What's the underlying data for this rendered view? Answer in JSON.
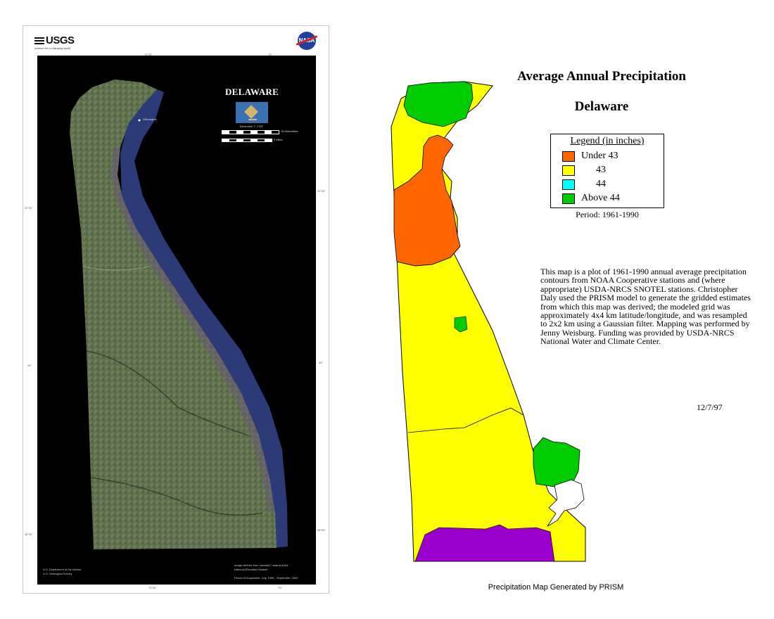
{
  "poster": {
    "agency": "USGS",
    "agency_tagline": "science for a changing world",
    "nasa_label": "NASA",
    "title": "DELAWARE",
    "coords": {
      "top_left": "75°30'",
      "top_right": "75°",
      "left_1": "39°30'",
      "right_1": "39°30'",
      "left_2": "39°",
      "right_2": "39°",
      "left_3": "38°30'",
      "right_3": "38°30'",
      "bottom_left": "75°30'",
      "bottom_right": "75°"
    },
    "city_label": "Wilmington",
    "scale_km": "15 Kilometers",
    "scale_mi": "5 Miles",
    "flag_caption": "December 7, 1787",
    "credit_left": [
      "U.S. Department of the Interior",
      "U.S. Geological Survey"
    ],
    "credit_right": [
      "Image derived from Landsat 7 data and the",
      "National Elevation Dataset",
      "",
      "Period of Acquisition: July, 1999 - September, 2002"
    ]
  },
  "precip_map": {
    "title": "Average Annual Precipitation",
    "subtitle": "Delaware",
    "legend": {
      "title": "Legend (in inches)",
      "items": [
        {
          "label": "Under 43",
          "color": "#ff6600"
        },
        {
          "label": "43",
          "color": "#ffff00"
        },
        {
          "label": "44",
          "color": "#00ffff"
        },
        {
          "label": "Above 44",
          "color": "#00cc00"
        }
      ]
    },
    "period": "Period: 1961-1990",
    "description": "This map is a plot of 1961-1990 annual average precipitation contours from NOAA Cooperative stations and (where appropriate) USDA-NRCS SNOTEL stations. Christopher Daly used the PRISM model to generate the gridded estimates from which this map was derived; the modeled grid was approximately 4x4 km latitude/longitude, and was resampled to 2x2 km using a Gaussian filter. Mapping was performed by Jenny Weisburg. Funding was provided by USDA-NRCS National Water and Climate Center.",
    "date": "12/7/97",
    "footer": "Precipitation Map Generated by PRISM",
    "colors": {
      "under43": "#ff6600",
      "p43": "#ffff00",
      "p44": "#00ffff",
      "above44": "#00cc00",
      "purple": "#9900cc"
    }
  }
}
